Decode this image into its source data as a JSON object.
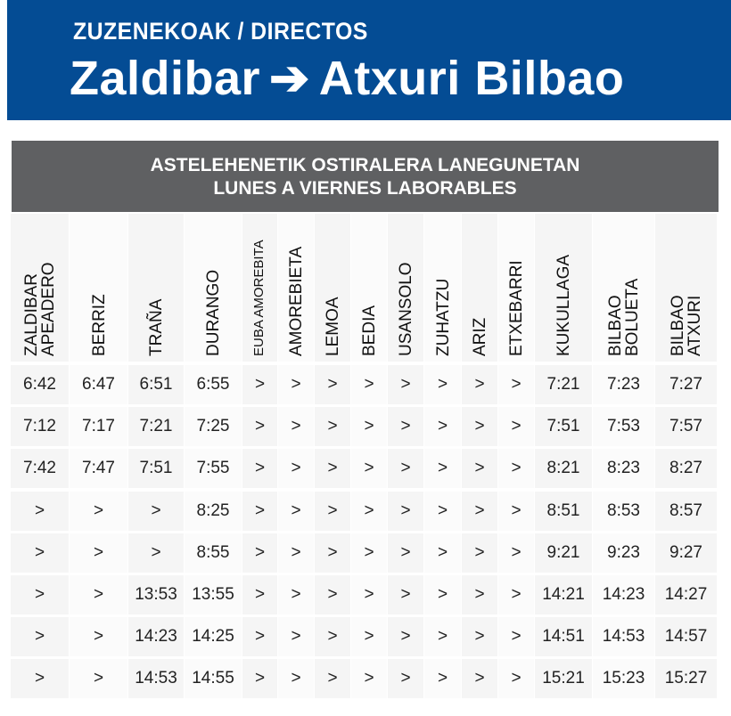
{
  "header": {
    "subtitle": "ZUZENEKOAK / DIRECTOS",
    "origin": "Zaldibar",
    "arrow": "➔",
    "destination": "Atxuri Bilbao"
  },
  "band": {
    "line1": "ASTELEHENETIK OSTIRALERA LANEGUNETAN",
    "line2": "LUNES A VIERNES LABORABLES"
  },
  "colors": {
    "header_bg": "#044c94",
    "band_bg": "#5f6062"
  },
  "stations": [
    [
      "ZALDIBAR",
      "APEADERO"
    ],
    [
      "BERRIZ"
    ],
    [
      "TRAÑA"
    ],
    [
      "DURANGO"
    ],
    [
      "EUBA AMOREBITA"
    ],
    [
      "AMOREBIETA"
    ],
    [
      "LEMOA"
    ],
    [
      "BEDIA"
    ],
    [
      "USANSOLO"
    ],
    [
      "ZUHATZU"
    ],
    [
      "ARIZ"
    ],
    [
      "ETXEBARRI"
    ],
    [
      "KUKULLAGA"
    ],
    [
      "BILBAO",
      "BOLUETA"
    ],
    [
      "BILBAO",
      "ATXURI"
    ]
  ],
  "rows": [
    [
      "6:42",
      "6:47",
      "6:51",
      "6:55",
      ">",
      ">",
      ">",
      ">",
      ">",
      ">",
      ">",
      ">",
      "7:21",
      "7:23",
      "7:27"
    ],
    [
      "7:12",
      "7:17",
      "7:21",
      "7:25",
      ">",
      ">",
      ">",
      ">",
      ">",
      ">",
      ">",
      ">",
      "7:51",
      "7:53",
      "7:57"
    ],
    [
      "7:42",
      "7:47",
      "7:51",
      "7:55",
      ">",
      ">",
      ">",
      ">",
      ">",
      ">",
      ">",
      ">",
      "8:21",
      "8:23",
      "8:27"
    ],
    [
      ">",
      ">",
      ">",
      "8:25",
      ">",
      ">",
      ">",
      ">",
      ">",
      ">",
      ">",
      ">",
      "8:51",
      "8:53",
      "8:57"
    ],
    [
      ">",
      ">",
      ">",
      "8:55",
      ">",
      ">",
      ">",
      ">",
      ">",
      ">",
      ">",
      ">",
      "9:21",
      "9:23",
      "9:27"
    ],
    [
      ">",
      ">",
      "13:53",
      "13:55",
      ">",
      ">",
      ">",
      ">",
      ">",
      ">",
      ">",
      ">",
      "14:21",
      "14:23",
      "14:27"
    ],
    [
      ">",
      ">",
      "14:23",
      "14:25",
      ">",
      ">",
      ">",
      ">",
      ">",
      ">",
      ">",
      ">",
      "14:51",
      "14:53",
      "14:57"
    ],
    [
      ">",
      ">",
      "14:53",
      "14:55",
      ">",
      ">",
      ">",
      ">",
      ">",
      ">",
      ">",
      ">",
      "15:21",
      "15:23",
      "15:27"
    ]
  ]
}
